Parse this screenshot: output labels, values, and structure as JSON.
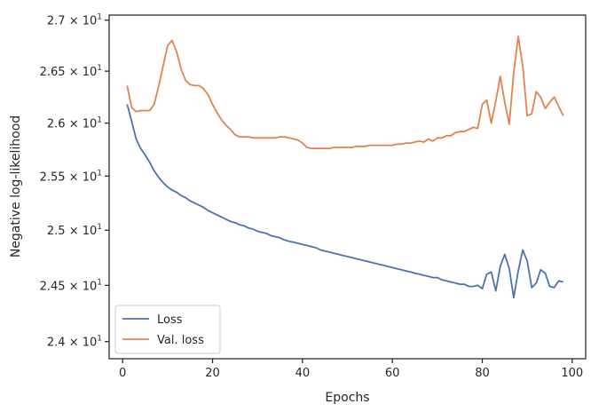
{
  "chart_data": {
    "type": "line",
    "xlabel": "Epochs",
    "ylabel": "Negative log-likelihood",
    "yscale": "log",
    "xlim": [
      -3,
      103
    ],
    "ylim": [
      23.85,
      27.05
    ],
    "x_ticks": [
      0,
      20,
      40,
      60,
      80,
      100
    ],
    "x_tick_labels": [
      "0",
      "20",
      "40",
      "60",
      "80",
      "100"
    ],
    "y_ticks": [
      {
        "value": 24.0,
        "mantissa": "2.4"
      },
      {
        "value": 24.5,
        "mantissa": "2.45"
      },
      {
        "value": 25.0,
        "mantissa": "2.5"
      },
      {
        "value": 25.5,
        "mantissa": "2.55"
      },
      {
        "value": 26.0,
        "mantissa": "2.6"
      },
      {
        "value": 26.5,
        "mantissa": "2.65"
      },
      {
        "value": 27.0,
        "mantissa": "2.7"
      }
    ],
    "y_tick_base": "10",
    "y_tick_exponent": "1",
    "grid": false,
    "legend_position": "lower-left",
    "legend": {
      "loss": "Loss",
      "val_loss": "Val. loss"
    },
    "colors": {
      "loss": "#4c72b0",
      "val_loss": "#dd8452",
      "axes": "#262626"
    },
    "series": [
      {
        "name": "Loss",
        "color": "#4c72b0",
        "x": [
          1,
          2,
          3,
          4,
          5,
          6,
          7,
          8,
          9,
          10,
          11,
          12,
          13,
          14,
          15,
          16,
          17,
          18,
          19,
          20,
          21,
          22,
          23,
          24,
          25,
          26,
          27,
          28,
          29,
          30,
          31,
          32,
          33,
          34,
          35,
          36,
          37,
          38,
          39,
          40,
          41,
          42,
          43,
          44,
          45,
          46,
          47,
          48,
          49,
          50,
          51,
          52,
          53,
          54,
          55,
          56,
          57,
          58,
          59,
          60,
          61,
          62,
          63,
          64,
          65,
          66,
          67,
          68,
          69,
          70,
          71,
          72,
          73,
          74,
          75,
          76,
          77,
          78,
          79,
          80,
          81,
          82,
          83,
          84,
          85,
          86,
          87,
          88,
          89,
          90,
          91,
          92,
          93,
          94,
          95,
          96,
          97,
          98
        ],
        "y": [
          26.18,
          26.02,
          25.85,
          25.76,
          25.7,
          25.63,
          25.55,
          25.49,
          25.44,
          25.4,
          25.37,
          25.35,
          25.32,
          25.3,
          25.27,
          25.25,
          25.23,
          25.21,
          25.18,
          25.16,
          25.14,
          25.12,
          25.1,
          25.08,
          25.07,
          25.05,
          25.04,
          25.02,
          25.01,
          24.99,
          24.98,
          24.97,
          24.95,
          24.94,
          24.93,
          24.91,
          24.9,
          24.89,
          24.88,
          24.87,
          24.86,
          24.85,
          24.84,
          24.82,
          24.81,
          24.8,
          24.79,
          24.78,
          24.77,
          24.76,
          24.75,
          24.74,
          24.73,
          24.72,
          24.71,
          24.7,
          24.69,
          24.68,
          24.67,
          24.66,
          24.65,
          24.64,
          24.63,
          24.62,
          24.61,
          24.6,
          24.59,
          24.58,
          24.57,
          24.57,
          24.55,
          24.54,
          24.53,
          24.52,
          24.51,
          24.51,
          24.49,
          24.49,
          24.5,
          24.47,
          24.6,
          24.62,
          24.45,
          24.67,
          24.78,
          24.65,
          24.39,
          24.63,
          24.82,
          24.72,
          24.48,
          24.52,
          24.64,
          24.61,
          24.49,
          24.48,
          24.54,
          24.53
        ]
      },
      {
        "name": "Val. loss",
        "color": "#dd8452",
        "x": [
          1,
          2,
          3,
          4,
          5,
          6,
          7,
          8,
          9,
          10,
          11,
          12,
          13,
          14,
          15,
          16,
          17,
          18,
          19,
          20,
          21,
          22,
          23,
          24,
          25,
          26,
          27,
          28,
          29,
          30,
          31,
          32,
          33,
          34,
          35,
          36,
          37,
          38,
          39,
          40,
          41,
          42,
          43,
          44,
          45,
          46,
          47,
          48,
          49,
          50,
          51,
          52,
          53,
          54,
          55,
          56,
          57,
          58,
          59,
          60,
          61,
          62,
          63,
          64,
          65,
          66,
          67,
          68,
          69,
          70,
          71,
          72,
          73,
          74,
          75,
          76,
          77,
          78,
          79,
          80,
          81,
          82,
          83,
          84,
          85,
          86,
          87,
          88,
          89,
          90,
          91,
          92,
          93,
          94,
          95,
          96,
          97,
          98
        ],
        "y": [
          26.36,
          26.15,
          26.11,
          26.12,
          26.12,
          26.12,
          26.18,
          26.35,
          26.55,
          26.75,
          26.8,
          26.69,
          26.52,
          26.41,
          26.37,
          26.36,
          26.36,
          26.33,
          26.27,
          26.18,
          26.1,
          26.03,
          25.98,
          25.94,
          25.89,
          25.87,
          25.87,
          25.87,
          25.86,
          25.86,
          25.86,
          25.86,
          25.86,
          25.86,
          25.87,
          25.87,
          25.86,
          25.85,
          25.84,
          25.81,
          25.77,
          25.76,
          25.76,
          25.76,
          25.76,
          25.76,
          25.77,
          25.77,
          25.77,
          25.77,
          25.77,
          25.78,
          25.78,
          25.78,
          25.79,
          25.79,
          25.79,
          25.79,
          25.79,
          25.79,
          25.8,
          25.8,
          25.81,
          25.81,
          25.82,
          25.83,
          25.82,
          25.85,
          25.83,
          25.86,
          25.86,
          25.88,
          25.88,
          25.91,
          25.92,
          25.92,
          25.94,
          25.96,
          25.95,
          26.18,
          26.22,
          26.0,
          26.21,
          26.45,
          26.2,
          25.99,
          26.48,
          26.84,
          26.55,
          26.07,
          26.09,
          26.3,
          26.25,
          26.14,
          26.2,
          26.25,
          26.16,
          26.07
        ]
      }
    ]
  }
}
